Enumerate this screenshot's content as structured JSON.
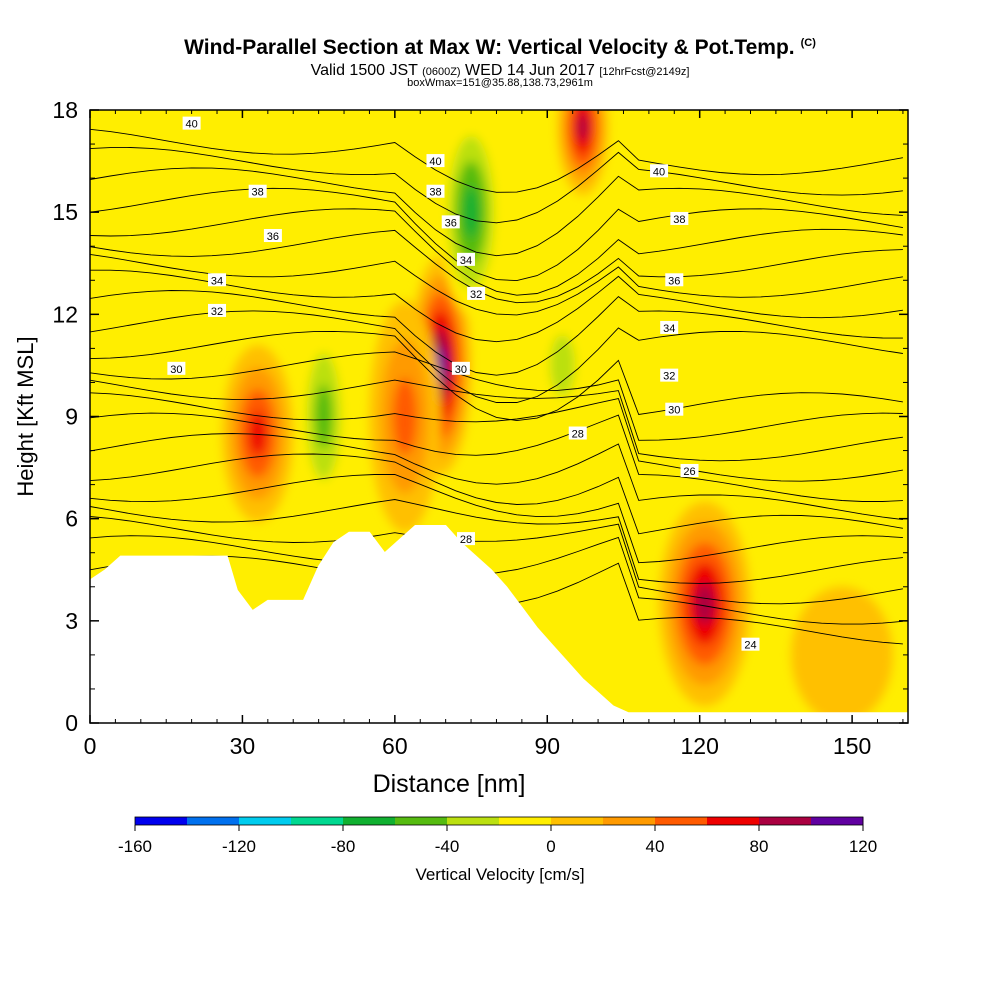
{
  "title": {
    "main": "Wind-Parallel Section at Max W: Vertical Velocity & Pot.Temp.",
    "copyright": "(C)",
    "valid_prefix": "Valid 1500 JST",
    "valid_utc": "(0600Z)",
    "valid_date": "WED 14 Jun 2017",
    "valid_fcst": "[12hrFcst@2149z]",
    "box": "boxWmax=151@35.88,138.73,2961m"
  },
  "chart_data": {
    "type": "heatmap",
    "xlabel": "Distance [nm]",
    "ylabel": "Height [Kft MSL]",
    "xlim": [
      0,
      161
    ],
    "ylim": [
      0,
      18
    ],
    "xticks": [
      0,
      30,
      60,
      90,
      120,
      150
    ],
    "yticks": [
      0,
      3,
      6,
      9,
      12,
      15,
      18
    ],
    "colorbar": {
      "label": "Vertical Velocity [cm/s]",
      "tick_labels": [
        "-160",
        "-120",
        "-80",
        "-40",
        "0",
        "40",
        "80",
        "120"
      ],
      "tick_values": [
        -160,
        -120,
        -80,
        -40,
        0,
        40,
        80,
        120
      ],
      "bins": [
        -160,
        -140,
        -120,
        -100,
        -80,
        -60,
        -40,
        -20,
        0,
        20,
        40,
        60,
        80,
        100,
        120
      ],
      "colors": [
        "#0000ee",
        "#0070ee",
        "#00ccee",
        "#00d890",
        "#10b030",
        "#55bb10",
        "#bbe010",
        "#ffee00",
        "#ffc000",
        "#ff9a00",
        "#ff5a00",
        "#ee0000",
        "#aa0040",
        "#6000a0"
      ]
    },
    "background_value_color": "#ffee00",
    "w_features": [
      {
        "x": 33,
        "y": 8.5,
        "peak_w": 80
      },
      {
        "x": 46,
        "y": 9.0,
        "peak_w": -60
      },
      {
        "x": 69,
        "y": 10.5,
        "peak_w": 120
      },
      {
        "x": 62,
        "y": 9.0,
        "peak_w": 60
      },
      {
        "x": 75,
        "y": 15.0,
        "peak_w": -80
      },
      {
        "x": 97,
        "y": 17.5,
        "peak_w": 100
      },
      {
        "x": 93,
        "y": 10.5,
        "peak_w": -40
      },
      {
        "x": 121,
        "y": 3.5,
        "peak_w": 100
      },
      {
        "x": 148,
        "y": 2.0,
        "peak_w": 20
      }
    ],
    "terrain": [
      {
        "x": 0,
        "h": 4.2
      },
      {
        "x": 3,
        "h": 4.5
      },
      {
        "x": 6,
        "h": 4.9
      },
      {
        "x": 27,
        "h": 4.9
      },
      {
        "x": 29,
        "h": 3.9
      },
      {
        "x": 32,
        "h": 3.3
      },
      {
        "x": 35,
        "h": 3.6
      },
      {
        "x": 42,
        "h": 3.6
      },
      {
        "x": 45,
        "h": 4.6
      },
      {
        "x": 48,
        "h": 5.3
      },
      {
        "x": 51,
        "h": 5.6
      },
      {
        "x": 55,
        "h": 5.6
      },
      {
        "x": 58,
        "h": 5.0
      },
      {
        "x": 61,
        "h": 5.4
      },
      {
        "x": 64,
        "h": 5.8
      },
      {
        "x": 70,
        "h": 5.8
      },
      {
        "x": 73,
        "h": 5.3
      },
      {
        "x": 76,
        "h": 4.9
      },
      {
        "x": 79,
        "h": 4.5
      },
      {
        "x": 82,
        "h": 4.0
      },
      {
        "x": 85,
        "h": 3.4
      },
      {
        "x": 88,
        "h": 2.8
      },
      {
        "x": 91,
        "h": 2.3
      },
      {
        "x": 94,
        "h": 1.8
      },
      {
        "x": 97,
        "h": 1.3
      },
      {
        "x": 100,
        "h": 0.9
      },
      {
        "x": 103,
        "h": 0.5
      },
      {
        "x": 106,
        "h": 0.3
      },
      {
        "x": 161,
        "h": 0.3
      }
    ],
    "theta_labels": [
      {
        "label": "40",
        "x": 20,
        "y": 17.6
      },
      {
        "label": "40",
        "x": 68,
        "y": 16.5
      },
      {
        "label": "40",
        "x": 112,
        "y": 16.2
      },
      {
        "label": "38",
        "x": 33,
        "y": 15.6
      },
      {
        "label": "38",
        "x": 68,
        "y": 15.6
      },
      {
        "label": "38",
        "x": 116,
        "y": 14.8
      },
      {
        "label": "36",
        "x": 36,
        "y": 14.3
      },
      {
        "label": "36",
        "x": 71,
        "y": 14.7
      },
      {
        "label": "36",
        "x": 115,
        "y": 13.0
      },
      {
        "label": "34",
        "x": 25,
        "y": 13.0
      },
      {
        "label": "34",
        "x": 74,
        "y": 13.6
      },
      {
        "label": "34",
        "x": 114,
        "y": 11.6
      },
      {
        "label": "32",
        "x": 25,
        "y": 12.1
      },
      {
        "label": "32",
        "x": 76,
        "y": 12.6
      },
      {
        "label": "32",
        "x": 114,
        "y": 10.2
      },
      {
        "label": "30",
        "x": 17,
        "y": 10.4
      },
      {
        "label": "30",
        "x": 73,
        "y": 10.4
      },
      {
        "label": "30",
        "x": 115,
        "y": 9.2
      },
      {
        "label": "28",
        "x": 96,
        "y": 8.5
      },
      {
        "label": "28",
        "x": 74,
        "y": 5.4
      },
      {
        "label": "26",
        "x": 118,
        "y": 7.4
      },
      {
        "label": "24",
        "x": 130,
        "y": 2.3
      }
    ]
  }
}
